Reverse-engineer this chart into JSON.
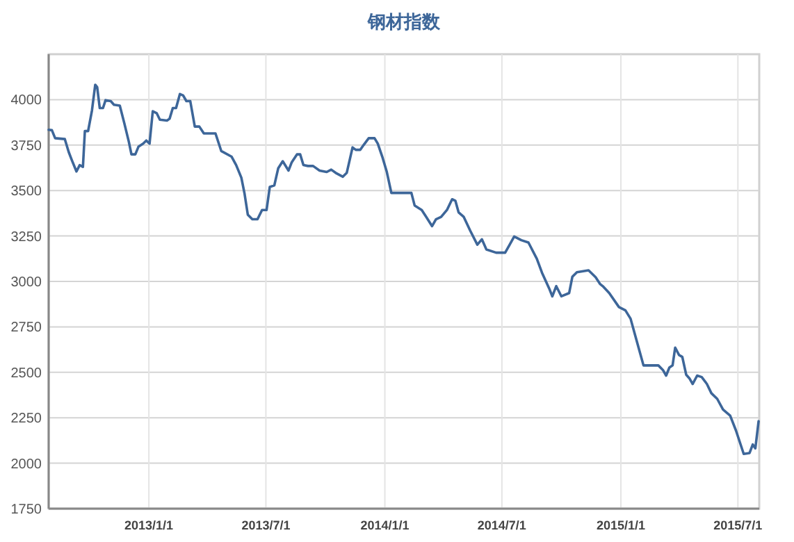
{
  "chart_data": {
    "type": "line",
    "title": "钢材指数",
    "xlim": [
      "2012-07-30",
      "2015-08-03"
    ],
    "ylim": [
      1750,
      4250
    ],
    "xticks": [
      {
        "value": "2013-01-01",
        "label": "2013/1/1"
      },
      {
        "value": "2013-07-01",
        "label": "2013/7/1"
      },
      {
        "value": "2014-01-01",
        "label": "2014/1/1"
      },
      {
        "value": "2014-07-01",
        "label": "2014/7/1"
      },
      {
        "value": "2015-01-01",
        "label": "2015/1/1"
      },
      {
        "value": "2015-07-01",
        "label": "2015/7/1"
      }
    ],
    "yticks": [
      1750,
      2000,
      2250,
      2500,
      2750,
      3000,
      3250,
      3500,
      3750,
      4000
    ],
    "grid": true,
    "marker": "none",
    "line_style": "solid",
    "series": [
      {
        "color": "#3d6699",
        "x": [
          "2012-07-30",
          "2012-08-04",
          "2012-08-09",
          "2012-08-24",
          "2012-08-30",
          "2012-09-04",
          "2012-09-11",
          "2012-09-16",
          "2012-09-21",
          "2012-09-24",
          "2012-09-29",
          "2012-10-05",
          "2012-10-10",
          "2012-10-13",
          "2012-10-17",
          "2012-10-22",
          "2012-10-26",
          "2012-11-03",
          "2012-11-08",
          "2012-11-17",
          "2012-11-24",
          "2012-12-01",
          "2012-12-05",
          "2012-12-11",
          "2012-12-16",
          "2012-12-23",
          "2012-12-28",
          "2013-01-02",
          "2013-01-07",
          "2013-01-13",
          "2013-01-18",
          "2013-01-29",
          "2013-02-02",
          "2013-02-07",
          "2013-02-12",
          "2013-02-18",
          "2013-02-23",
          "2013-02-28",
          "2013-03-06",
          "2013-03-13",
          "2013-03-20",
          "2013-03-27",
          "2013-04-14",
          "2013-04-23",
          "2013-05-09",
          "2013-05-16",
          "2013-05-24",
          "2013-05-29",
          "2013-06-03",
          "2013-06-10",
          "2013-06-18",
          "2013-06-25",
          "2013-07-02",
          "2013-07-07",
          "2013-07-14",
          "2013-07-20",
          "2013-07-27",
          "2013-08-05",
          "2013-08-10",
          "2013-08-18",
          "2013-08-23",
          "2013-08-28",
          "2013-09-04",
          "2013-09-12",
          "2013-09-22",
          "2013-10-03",
          "2013-10-10",
          "2013-10-17",
          "2013-10-28",
          "2013-11-03",
          "2013-11-12",
          "2013-11-17",
          "2013-11-24",
          "2013-11-29",
          "2013-12-07",
          "2013-12-16",
          "2013-12-21",
          "2013-12-28",
          "2014-01-04",
          "2014-01-11",
          "2014-02-11",
          "2014-02-16",
          "2014-02-27",
          "2014-03-06",
          "2014-03-15",
          "2014-03-21",
          "2014-03-29",
          "2014-04-07",
          "2014-04-15",
          "2014-04-20",
          "2014-04-25",
          "2014-05-03",
          "2014-05-13",
          "2014-05-24",
          "2014-05-31",
          "2014-06-07",
          "2014-06-22",
          "2014-07-06",
          "2014-07-13",
          "2014-07-20",
          "2014-07-31",
          "2014-08-11",
          "2014-08-24",
          "2014-09-01",
          "2014-09-12",
          "2014-09-17",
          "2014-09-23",
          "2014-10-01",
          "2014-10-13",
          "2014-10-18",
          "2014-10-25",
          "2014-11-12",
          "2014-11-23",
          "2014-11-30",
          "2014-12-04",
          "2014-12-14",
          "2014-12-29",
          "2015-01-08",
          "2015-01-16",
          "2015-01-23",
          "2015-01-30",
          "2015-02-05",
          "2015-02-28",
          "2015-03-07",
          "2015-03-12",
          "2015-03-17",
          "2015-03-22",
          "2015-03-26",
          "2015-04-01",
          "2015-04-06",
          "2015-04-12",
          "2015-04-17",
          "2015-04-22",
          "2015-04-29",
          "2015-05-06",
          "2015-05-14",
          "2015-05-21",
          "2015-05-30",
          "2015-06-08",
          "2015-06-19",
          "2015-06-28",
          "2015-07-10",
          "2015-07-19",
          "2015-07-24",
          "2015-07-28",
          "2015-08-02"
        ],
        "values": [
          3834,
          3832,
          3788,
          3783,
          3712,
          3666,
          3605,
          3640,
          3630,
          3827,
          3827,
          3941,
          4082,
          4069,
          3954,
          3954,
          3997,
          3992,
          3972,
          3967,
          3870,
          3768,
          3699,
          3699,
          3742,
          3758,
          3775,
          3758,
          3936,
          3926,
          3890,
          3885,
          3895,
          3954,
          3954,
          4031,
          4023,
          3992,
          3992,
          3852,
          3852,
          3814,
          3814,
          3717,
          3686,
          3640,
          3571,
          3482,
          3367,
          3342,
          3342,
          3393,
          3393,
          3520,
          3528,
          3622,
          3661,
          3610,
          3656,
          3699,
          3699,
          3640,
          3635,
          3635,
          3610,
          3602,
          3615,
          3597,
          3576,
          3597,
          3737,
          3724,
          3724,
          3750,
          3788,
          3788,
          3758,
          3686,
          3602,
          3487,
          3487,
          3418,
          3393,
          3355,
          3304,
          3342,
          3355,
          3393,
          3452,
          3444,
          3380,
          3355,
          3279,
          3202,
          3232,
          3176,
          3158,
          3158,
          3202,
          3247,
          3227,
          3214,
          3125,
          3048,
          2962,
          2918,
          2974,
          2918,
          2936,
          3026,
          3051,
          3061,
          3023,
          2985,
          2974,
          2936,
          2859,
          2841,
          2795,
          2705,
          2615,
          2538,
          2538,
          2513,
          2482,
          2526,
          2538,
          2636,
          2595,
          2585,
          2487,
          2467,
          2436,
          2482,
          2474,
          2436,
          2385,
          2354,
          2295,
          2262,
          2180,
          2051,
          2056,
          2103,
          2082,
          2231
        ]
      }
    ]
  }
}
